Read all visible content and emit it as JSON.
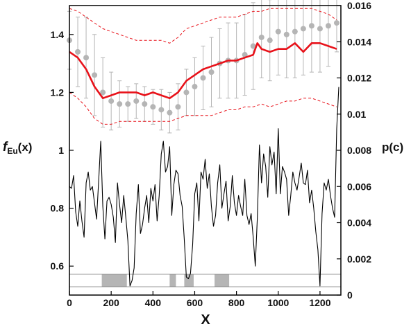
{
  "chart_data": {
    "type": "line",
    "title": "",
    "xlabel": "X",
    "ylabel_left": {
      "main": "f",
      "sub": "Eu",
      "suffix": "(x)"
    },
    "ylabel_right": "p(c)",
    "xlim": [
      0,
      1300
    ],
    "ylim_left": [
      0.5,
      1.5
    ],
    "ylim_right": [
      0,
      0.016
    ],
    "x_ticks": [
      "0",
      "200",
      "400",
      "600",
      "800",
      "1000",
      "1200"
    ],
    "y_left_ticks": [
      "0.6",
      "0.8",
      "1",
      "1.2",
      "1.4"
    ],
    "y_right_ticks": [
      "0",
      "0.002",
      "0.004",
      "0.006",
      "0.008",
      "0.01",
      "0.012",
      "0.014",
      "0.016"
    ],
    "grid": false,
    "colors": {
      "red": "#e8121a",
      "gray": "#b5b5b5",
      "black": "#000000"
    },
    "series": [
      {
        "kind": "gray-points-with-errorbars",
        "axis": "left",
        "x": [
          0,
          40,
          80,
          120,
          160,
          200,
          240,
          280,
          320,
          360,
          400,
          440,
          480,
          520,
          560,
          600,
          640,
          680,
          720,
          760,
          800,
          840,
          880,
          920,
          960,
          1000,
          1040,
          1080,
          1120,
          1160,
          1200,
          1240,
          1280
        ],
        "y": [
          1.38,
          1.34,
          1.32,
          1.26,
          1.2,
          1.17,
          1.16,
          1.16,
          1.17,
          1.16,
          1.15,
          1.14,
          1.13,
          1.15,
          1.2,
          1.22,
          1.25,
          1.27,
          1.3,
          1.31,
          1.31,
          1.33,
          1.36,
          1.39,
          1.38,
          1.41,
          1.4,
          1.41,
          1.42,
          1.43,
          1.42,
          1.43,
          1.44
        ],
        "error": [
          0.1,
          0.12,
          0.14,
          0.14,
          0.12,
          0.1,
          0.08,
          0.06,
          0.06,
          0.06,
          0.06,
          0.07,
          0.07,
          0.08,
          0.08,
          0.1,
          0.11,
          0.12,
          0.12,
          0.13,
          0.13,
          0.14,
          0.15,
          0.14,
          0.14,
          0.15,
          0.15,
          0.16,
          0.16,
          0.16,
          0.15,
          0.14,
          0.1
        ]
      },
      {
        "kind": "red-mean-line",
        "axis": "left",
        "x": [
          0,
          40,
          80,
          120,
          160,
          200,
          240,
          280,
          320,
          360,
          400,
          440,
          480,
          520,
          560,
          600,
          640,
          680,
          720,
          760,
          800,
          840,
          880,
          900,
          920,
          960,
          1000,
          1040,
          1080,
          1120,
          1160,
          1200,
          1240,
          1280
        ],
        "y": [
          1.34,
          1.32,
          1.28,
          1.22,
          1.18,
          1.19,
          1.2,
          1.2,
          1.2,
          1.19,
          1.2,
          1.19,
          1.18,
          1.2,
          1.24,
          1.26,
          1.28,
          1.29,
          1.3,
          1.31,
          1.31,
          1.32,
          1.33,
          1.37,
          1.35,
          1.34,
          1.35,
          1.35,
          1.37,
          1.34,
          1.37,
          1.37,
          1.36,
          1.35
        ]
      },
      {
        "kind": "red-dashed-upper-bound",
        "axis": "left",
        "x": [
          0,
          40,
          80,
          120,
          160,
          200,
          240,
          280,
          320,
          360,
          400,
          440,
          480,
          520,
          560,
          600,
          640,
          680,
          720,
          760,
          800,
          840,
          880,
          920,
          960,
          1000,
          1040,
          1080,
          1120,
          1160,
          1200,
          1240,
          1280
        ],
        "y": [
          1.49,
          1.48,
          1.46,
          1.44,
          1.42,
          1.41,
          1.4,
          1.39,
          1.38,
          1.38,
          1.38,
          1.38,
          1.37,
          1.39,
          1.42,
          1.43,
          1.44,
          1.45,
          1.46,
          1.46,
          1.46,
          1.47,
          1.48,
          1.48,
          1.49,
          1.49,
          1.49,
          1.49,
          1.49,
          1.49,
          1.48,
          1.47,
          1.45
        ]
      },
      {
        "kind": "red-dashed-lower-bound",
        "axis": "left",
        "x": [
          0,
          40,
          80,
          120,
          160,
          200,
          240,
          280,
          320,
          360,
          400,
          440,
          480,
          520,
          560,
          600,
          640,
          680,
          720,
          760,
          800,
          840,
          880,
          920,
          960,
          1000,
          1040,
          1080,
          1120,
          1160,
          1200,
          1240,
          1280
        ],
        "y": [
          1.2,
          1.18,
          1.15,
          1.11,
          1.09,
          1.09,
          1.1,
          1.1,
          1.1,
          1.1,
          1.1,
          1.1,
          1.1,
          1.11,
          1.12,
          1.12,
          1.12,
          1.12,
          1.13,
          1.14,
          1.14,
          1.15,
          1.15,
          1.16,
          1.15,
          1.16,
          1.17,
          1.17,
          1.18,
          1.18,
          1.17,
          1.16,
          1.15
        ]
      },
      {
        "kind": "black-line",
        "axis": "right",
        "x": [
          0,
          10,
          20,
          30,
          40,
          50,
          60,
          70,
          80,
          90,
          100,
          110,
          120,
          130,
          140,
          150,
          160,
          170,
          180,
          190,
          200,
          210,
          220,
          230,
          240,
          250,
          260,
          270,
          280,
          290,
          300,
          310,
          320,
          330,
          340,
          350,
          360,
          370,
          380,
          390,
          400,
          410,
          420,
          430,
          440,
          450,
          460,
          470,
          480,
          490,
          500,
          510,
          520,
          530,
          540,
          550,
          560,
          570,
          580,
          590,
          600,
          610,
          620,
          630,
          640,
          650,
          660,
          670,
          680,
          690,
          700,
          710,
          720,
          730,
          740,
          750,
          760,
          770,
          780,
          790,
          800,
          810,
          820,
          830,
          840,
          850,
          860,
          870,
          880,
          890,
          900,
          910,
          920,
          930,
          940,
          950,
          960,
          970,
          980,
          990,
          1000,
          1010,
          1020,
          1030,
          1040,
          1050,
          1060,
          1070,
          1080,
          1090,
          1100,
          1110,
          1120,
          1130,
          1140,
          1150,
          1160,
          1170,
          1180,
          1190,
          1200,
          1210,
          1220,
          1230,
          1240,
          1250,
          1260,
          1270,
          1280,
          1290
        ],
        "y": [
          0.006,
          0.0059,
          0.0066,
          0.0046,
          0.0038,
          0.0052,
          0.0041,
          0.0032,
          0.0062,
          0.0068,
          0.0058,
          0.006,
          0.0051,
          0.0042,
          0.0063,
          0.0085,
          0.0049,
          0.0031,
          0.0052,
          0.0054,
          0.005,
          0.0043,
          0.0029,
          0.0062,
          0.005,
          0.004,
          0.0055,
          0.0043,
          0.003,
          0.0005,
          0.0008,
          0.0015,
          0.0045,
          0.0061,
          0.0034,
          0.0039,
          0.0048,
          0.0055,
          0.004,
          0.0059,
          0.0052,
          0.0061,
          0.0041,
          0.0055,
          0.0078,
          0.0085,
          0.0068,
          0.0071,
          0.0082,
          0.0044,
          0.0061,
          0.0069,
          0.0067,
          0.0055,
          0.0049,
          0.0031,
          0.001,
          0.0009,
          0.0012,
          0.0028,
          0.0056,
          0.0062,
          0.0041,
          0.0068,
          0.0064,
          0.0075,
          0.0059,
          0.0067,
          0.0049,
          0.0038,
          0.0044,
          0.0062,
          0.0072,
          0.0048,
          0.0056,
          0.0063,
          0.0041,
          0.0049,
          0.0066,
          0.0051,
          0.0044,
          0.0055,
          0.0049,
          0.0044,
          0.0064,
          0.0044,
          0.0039,
          0.0045,
          0.0032,
          0.0016,
          0.0043,
          0.0083,
          0.0062,
          0.0078,
          0.0071,
          0.0054,
          0.0082,
          0.0072,
          0.0079,
          0.0056,
          0.0092,
          0.0056,
          0.0071,
          0.0068,
          0.0064,
          0.0044,
          0.0055,
          0.0068,
          0.0062,
          0.0058,
          0.0065,
          0.0073,
          0.0062,
          0.0061,
          0.0069,
          0.0051,
          0.0058,
          0.0048,
          0.0035,
          0.0025,
          0.0005,
          0.0045,
          0.0062,
          0.0058,
          0.0064,
          0.0055,
          0.0048,
          0.0043,
          0.0092,
          0.0115
        ]
      }
    ],
    "shaded_regions": [
      [
        155,
        275
      ],
      [
        480,
        510
      ],
      [
        550,
        595
      ],
      [
        695,
        765
      ]
    ]
  }
}
